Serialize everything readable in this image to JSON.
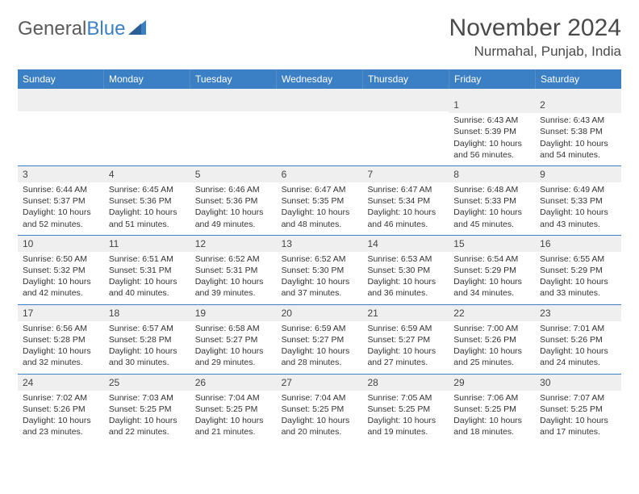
{
  "logo": {
    "text_gray": "General",
    "text_blue": "Blue"
  },
  "title": "November 2024",
  "location": "Nurmahal, Punjab, India",
  "colors": {
    "header_bg": "#3b7fc4",
    "header_text": "#ffffff",
    "daynum_bg": "#efefef",
    "border": "#3b7fc4",
    "text": "#333333",
    "logo_gray": "#5a5a5a"
  },
  "day_headers": [
    "Sunday",
    "Monday",
    "Tuesday",
    "Wednesday",
    "Thursday",
    "Friday",
    "Saturday"
  ],
  "weeks": [
    [
      {
        "n": "",
        "sunrise": "",
        "sunset": "",
        "daylight": ""
      },
      {
        "n": "",
        "sunrise": "",
        "sunset": "",
        "daylight": ""
      },
      {
        "n": "",
        "sunrise": "",
        "sunset": "",
        "daylight": ""
      },
      {
        "n": "",
        "sunrise": "",
        "sunset": "",
        "daylight": ""
      },
      {
        "n": "",
        "sunrise": "",
        "sunset": "",
        "daylight": ""
      },
      {
        "n": "1",
        "sunrise": "Sunrise: 6:43 AM",
        "sunset": "Sunset: 5:39 PM",
        "daylight": "Daylight: 10 hours and 56 minutes."
      },
      {
        "n": "2",
        "sunrise": "Sunrise: 6:43 AM",
        "sunset": "Sunset: 5:38 PM",
        "daylight": "Daylight: 10 hours and 54 minutes."
      }
    ],
    [
      {
        "n": "3",
        "sunrise": "Sunrise: 6:44 AM",
        "sunset": "Sunset: 5:37 PM",
        "daylight": "Daylight: 10 hours and 52 minutes."
      },
      {
        "n": "4",
        "sunrise": "Sunrise: 6:45 AM",
        "sunset": "Sunset: 5:36 PM",
        "daylight": "Daylight: 10 hours and 51 minutes."
      },
      {
        "n": "5",
        "sunrise": "Sunrise: 6:46 AM",
        "sunset": "Sunset: 5:36 PM",
        "daylight": "Daylight: 10 hours and 49 minutes."
      },
      {
        "n": "6",
        "sunrise": "Sunrise: 6:47 AM",
        "sunset": "Sunset: 5:35 PM",
        "daylight": "Daylight: 10 hours and 48 minutes."
      },
      {
        "n": "7",
        "sunrise": "Sunrise: 6:47 AM",
        "sunset": "Sunset: 5:34 PM",
        "daylight": "Daylight: 10 hours and 46 minutes."
      },
      {
        "n": "8",
        "sunrise": "Sunrise: 6:48 AM",
        "sunset": "Sunset: 5:33 PM",
        "daylight": "Daylight: 10 hours and 45 minutes."
      },
      {
        "n": "9",
        "sunrise": "Sunrise: 6:49 AM",
        "sunset": "Sunset: 5:33 PM",
        "daylight": "Daylight: 10 hours and 43 minutes."
      }
    ],
    [
      {
        "n": "10",
        "sunrise": "Sunrise: 6:50 AM",
        "sunset": "Sunset: 5:32 PM",
        "daylight": "Daylight: 10 hours and 42 minutes."
      },
      {
        "n": "11",
        "sunrise": "Sunrise: 6:51 AM",
        "sunset": "Sunset: 5:31 PM",
        "daylight": "Daylight: 10 hours and 40 minutes."
      },
      {
        "n": "12",
        "sunrise": "Sunrise: 6:52 AM",
        "sunset": "Sunset: 5:31 PM",
        "daylight": "Daylight: 10 hours and 39 minutes."
      },
      {
        "n": "13",
        "sunrise": "Sunrise: 6:52 AM",
        "sunset": "Sunset: 5:30 PM",
        "daylight": "Daylight: 10 hours and 37 minutes."
      },
      {
        "n": "14",
        "sunrise": "Sunrise: 6:53 AM",
        "sunset": "Sunset: 5:30 PM",
        "daylight": "Daylight: 10 hours and 36 minutes."
      },
      {
        "n": "15",
        "sunrise": "Sunrise: 6:54 AM",
        "sunset": "Sunset: 5:29 PM",
        "daylight": "Daylight: 10 hours and 34 minutes."
      },
      {
        "n": "16",
        "sunrise": "Sunrise: 6:55 AM",
        "sunset": "Sunset: 5:29 PM",
        "daylight": "Daylight: 10 hours and 33 minutes."
      }
    ],
    [
      {
        "n": "17",
        "sunrise": "Sunrise: 6:56 AM",
        "sunset": "Sunset: 5:28 PM",
        "daylight": "Daylight: 10 hours and 32 minutes."
      },
      {
        "n": "18",
        "sunrise": "Sunrise: 6:57 AM",
        "sunset": "Sunset: 5:28 PM",
        "daylight": "Daylight: 10 hours and 30 minutes."
      },
      {
        "n": "19",
        "sunrise": "Sunrise: 6:58 AM",
        "sunset": "Sunset: 5:27 PM",
        "daylight": "Daylight: 10 hours and 29 minutes."
      },
      {
        "n": "20",
        "sunrise": "Sunrise: 6:59 AM",
        "sunset": "Sunset: 5:27 PM",
        "daylight": "Daylight: 10 hours and 28 minutes."
      },
      {
        "n": "21",
        "sunrise": "Sunrise: 6:59 AM",
        "sunset": "Sunset: 5:27 PM",
        "daylight": "Daylight: 10 hours and 27 minutes."
      },
      {
        "n": "22",
        "sunrise": "Sunrise: 7:00 AM",
        "sunset": "Sunset: 5:26 PM",
        "daylight": "Daylight: 10 hours and 25 minutes."
      },
      {
        "n": "23",
        "sunrise": "Sunrise: 7:01 AM",
        "sunset": "Sunset: 5:26 PM",
        "daylight": "Daylight: 10 hours and 24 minutes."
      }
    ],
    [
      {
        "n": "24",
        "sunrise": "Sunrise: 7:02 AM",
        "sunset": "Sunset: 5:26 PM",
        "daylight": "Daylight: 10 hours and 23 minutes."
      },
      {
        "n": "25",
        "sunrise": "Sunrise: 7:03 AM",
        "sunset": "Sunset: 5:25 PM",
        "daylight": "Daylight: 10 hours and 22 minutes."
      },
      {
        "n": "26",
        "sunrise": "Sunrise: 7:04 AM",
        "sunset": "Sunset: 5:25 PM",
        "daylight": "Daylight: 10 hours and 21 minutes."
      },
      {
        "n": "27",
        "sunrise": "Sunrise: 7:04 AM",
        "sunset": "Sunset: 5:25 PM",
        "daylight": "Daylight: 10 hours and 20 minutes."
      },
      {
        "n": "28",
        "sunrise": "Sunrise: 7:05 AM",
        "sunset": "Sunset: 5:25 PM",
        "daylight": "Daylight: 10 hours and 19 minutes."
      },
      {
        "n": "29",
        "sunrise": "Sunrise: 7:06 AM",
        "sunset": "Sunset: 5:25 PM",
        "daylight": "Daylight: 10 hours and 18 minutes."
      },
      {
        "n": "30",
        "sunrise": "Sunrise: 7:07 AM",
        "sunset": "Sunset: 5:25 PM",
        "daylight": "Daylight: 10 hours and 17 minutes."
      }
    ]
  ]
}
